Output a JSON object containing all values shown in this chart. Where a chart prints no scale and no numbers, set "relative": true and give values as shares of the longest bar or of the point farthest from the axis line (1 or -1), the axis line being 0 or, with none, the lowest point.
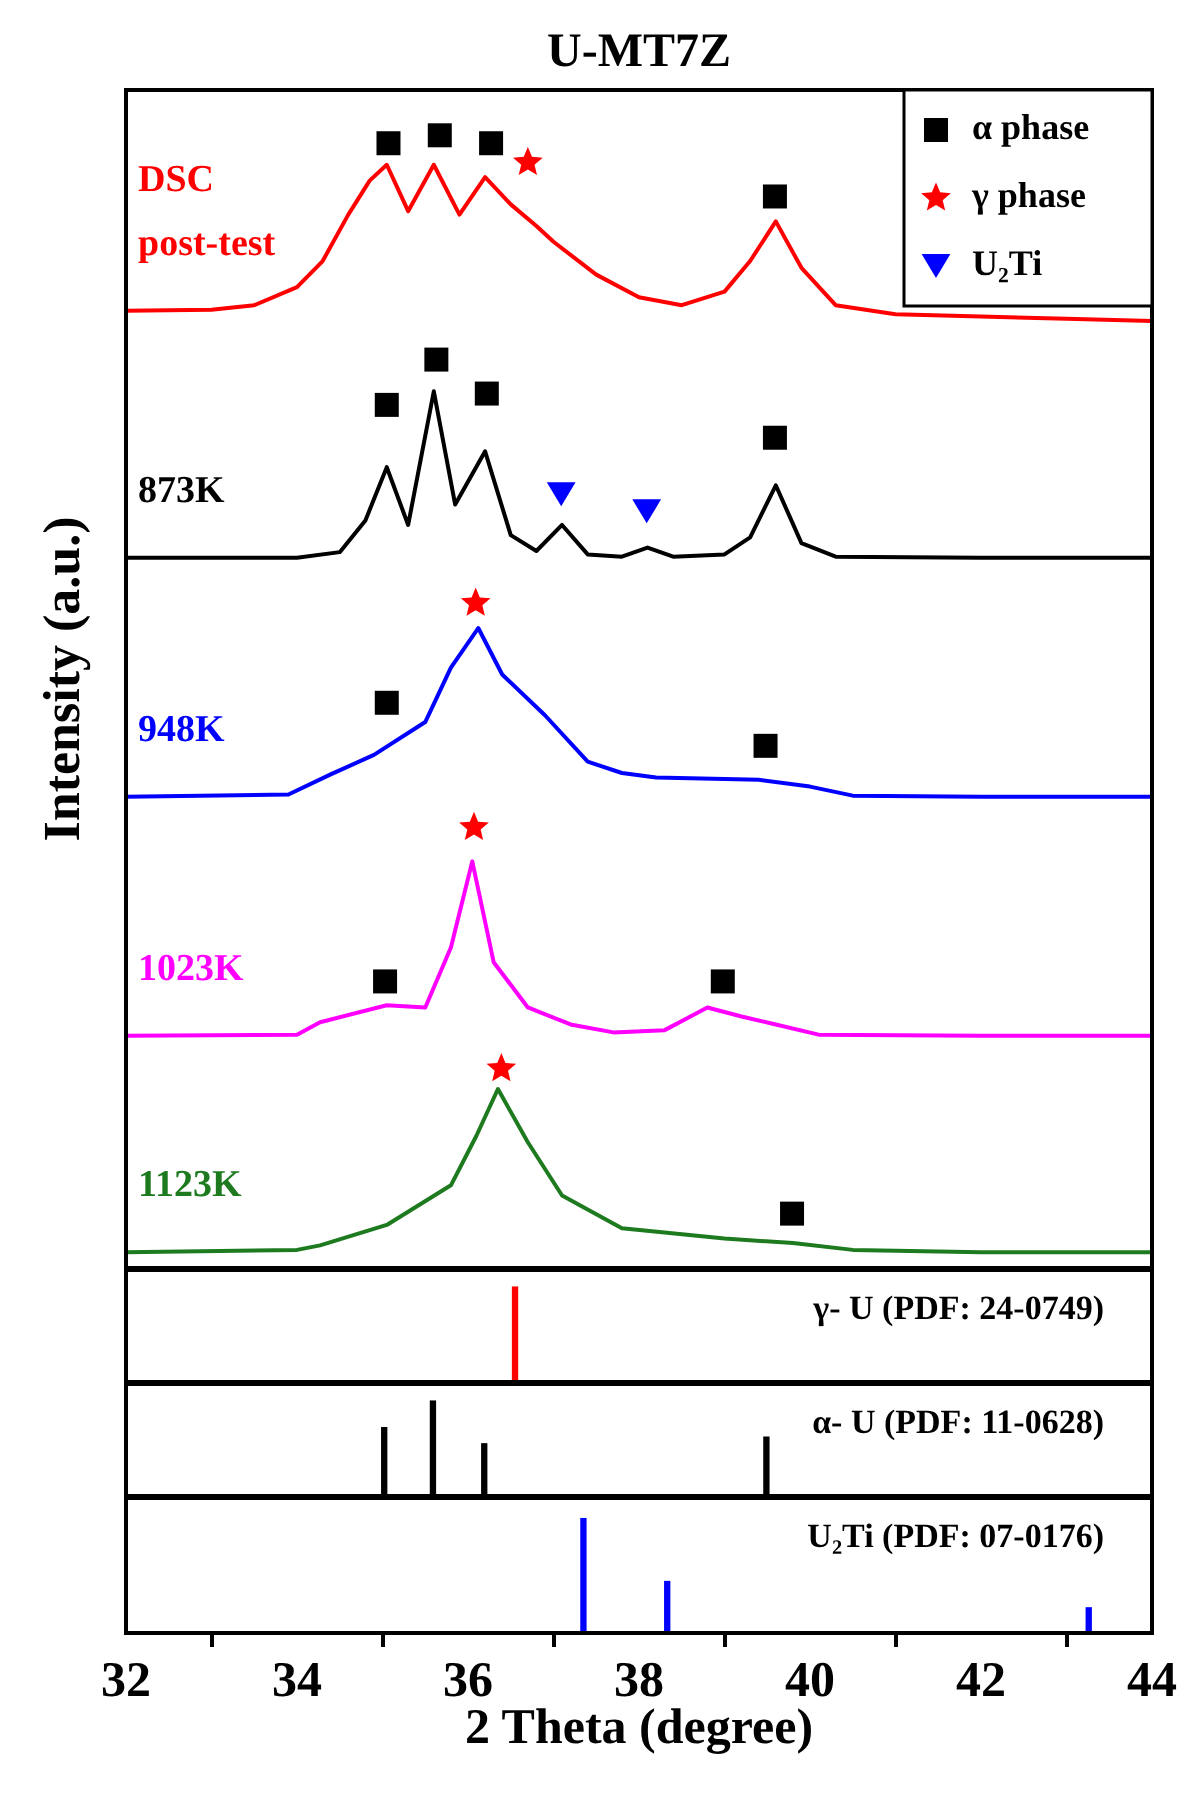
{
  "chart_data": [
    {
      "type": "line",
      "title": "U-MT7Z",
      "ylabel": "Intensity (a.u.)",
      "relative": true,
      "xlim": [
        32,
        44
      ],
      "xticks": [
        32,
        34,
        36,
        38,
        40,
        42,
        44
      ],
      "tick_labels": false,
      "legend": "top right",
      "marker": "none",
      "grid": false,
      "series": [
        {
          "name": "DSC post-test",
          "color": "#ff0000",
          "x": [
            32,
            33,
            33.5,
            34,
            34.3,
            34.6,
            34.85,
            35.05,
            35.3,
            35.6,
            35.9,
            36.2,
            36.5,
            36.8,
            37,
            37.5,
            38,
            38.5,
            39,
            39.3,
            39.6,
            39.9,
            40.3,
            41,
            42,
            43,
            44
          ],
          "values": [
            0.845,
            0.846,
            0.85,
            0.866,
            0.889,
            0.93,
            0.96,
            0.974,
            0.933,
            0.974,
            0.93,
            0.963,
            0.939,
            0.92,
            0.906,
            0.877,
            0.857,
            0.85,
            0.862,
            0.889,
            0.924,
            0.883,
            0.85,
            0.842,
            0.84,
            0.838,
            0.836
          ]
        },
        {
          "name": "873K",
          "color": "#000000",
          "x": [
            32,
            34,
            34.5,
            34.8,
            35.05,
            35.3,
            35.6,
            35.85,
            36.2,
            36.5,
            36.8,
            37.1,
            37.4,
            37.8,
            38.1,
            38.4,
            39,
            39.3,
            39.6,
            39.9,
            40.3,
            42,
            44
          ],
          "values": [
            0.627,
            0.627,
            0.632,
            0.66,
            0.707,
            0.656,
            0.774,
            0.674,
            0.721,
            0.647,
            0.633,
            0.656,
            0.63,
            0.628,
            0.636,
            0.628,
            0.63,
            0.645,
            0.691,
            0.64,
            0.628,
            0.627,
            0.627
          ]
        },
        {
          "name": "948K",
          "color": "#0000ff",
          "x": [
            32,
            33.9,
            34.4,
            34.9,
            35.5,
            35.8,
            36.12,
            36.4,
            36.9,
            37.4,
            37.8,
            38.2,
            39.4,
            40,
            40.5,
            42,
            44
          ],
          "values": [
            0.416,
            0.418,
            0.436,
            0.453,
            0.482,
            0.53,
            0.565,
            0.524,
            0.488,
            0.447,
            0.437,
            0.433,
            0.431,
            0.425,
            0.417,
            0.416,
            0.416
          ]
        },
        {
          "name": "1023K",
          "color": "#ff00ff",
          "x": [
            32,
            34,
            34.27,
            35.05,
            35.5,
            35.8,
            36.05,
            36.3,
            36.7,
            37.2,
            37.7,
            38.3,
            38.8,
            39.2,
            39.6,
            40.1,
            42,
            44
          ],
          "values": [
            0.205,
            0.206,
            0.217,
            0.232,
            0.23,
            0.283,
            0.359,
            0.27,
            0.23,
            0.215,
            0.208,
            0.21,
            0.23,
            0.222,
            0.215,
            0.206,
            0.205,
            0.205
          ]
        },
        {
          "name": "1123K",
          "color": "#1e7a1e",
          "x": [
            32,
            34,
            34.27,
            35.05,
            35.8,
            36.1,
            36.35,
            36.7,
            37.1,
            37.8,
            39,
            39.8,
            40.5,
            42,
            44
          ],
          "values": [
            0.014,
            0.016,
            0.02,
            0.038,
            0.073,
            0.117,
            0.158,
            0.111,
            0.064,
            0.035,
            0.026,
            0.022,
            0.016,
            0.014,
            0.014
          ]
        },
        {
          "type": "scatter",
          "name": "α phase",
          "color": "#000000",
          "marker": "square",
          "x": [
            35.07,
            35.67,
            36.27,
            39.59,
            35.05,
            35.63,
            36.22,
            39.59,
            35.05,
            39.48,
            35.03,
            38.98,
            39.79
          ],
          "values": [
            0.993,
            1.0,
            0.993,
            0.946,
            0.762,
            0.802,
            0.772,
            0.733,
            0.499,
            0.461,
            0.253,
            0.253,
            0.048
          ]
        },
        {
          "type": "scatter",
          "name": "γ phase",
          "color": "#ff0000",
          "marker": "star",
          "x": [
            36.7,
            36.09,
            36.07,
            36.39
          ],
          "values": [
            0.976,
            0.587,
            0.389,
            0.176
          ]
        },
        {
          "type": "scatter",
          "name": "U₂Ti",
          "color": "#0000ff",
          "marker": "triangle",
          "x": [
            37.09,
            38.09
          ],
          "values": [
            0.683,
            0.668
          ]
        }
      ]
    },
    {
      "type": "bar",
      "relative": true,
      "xlim": [
        32,
        44
      ],
      "xticks": [
        32,
        34,
        36,
        38,
        40,
        42,
        44
      ],
      "tick_labels": false,
      "color": "#ff0000",
      "x": [
        36.55
      ],
      "values": [
        1
      ],
      "annotations": [
        "γ- U (PDF: 24-0749)"
      ]
    },
    {
      "type": "bar",
      "relative": true,
      "xlim": [
        32,
        44
      ],
      "xticks": [
        32,
        34,
        36,
        38,
        40,
        42,
        44
      ],
      "tick_labels": false,
      "color": "#000000",
      "x": [
        35.02,
        35.59,
        36.19,
        39.49
      ],
      "values": [
        0.72,
        1,
        0.55,
        0.62
      ],
      "annotations": [
        "α- U (PDF: 11-0628)"
      ]
    },
    {
      "type": "bar",
      "relative": true,
      "xlim": [
        32,
        44
      ],
      "xticks": [
        32,
        34,
        36,
        38,
        40,
        42,
        44
      ],
      "xlabel": "2 Theta (degree)",
      "color": "#0000ff",
      "x": [
        37.35,
        38.33,
        43.26
      ],
      "values": [
        1,
        0.45,
        0.22
      ],
      "annotations": [
        "U₂Ti (PDF: 07-0176)"
      ]
    }
  ]
}
